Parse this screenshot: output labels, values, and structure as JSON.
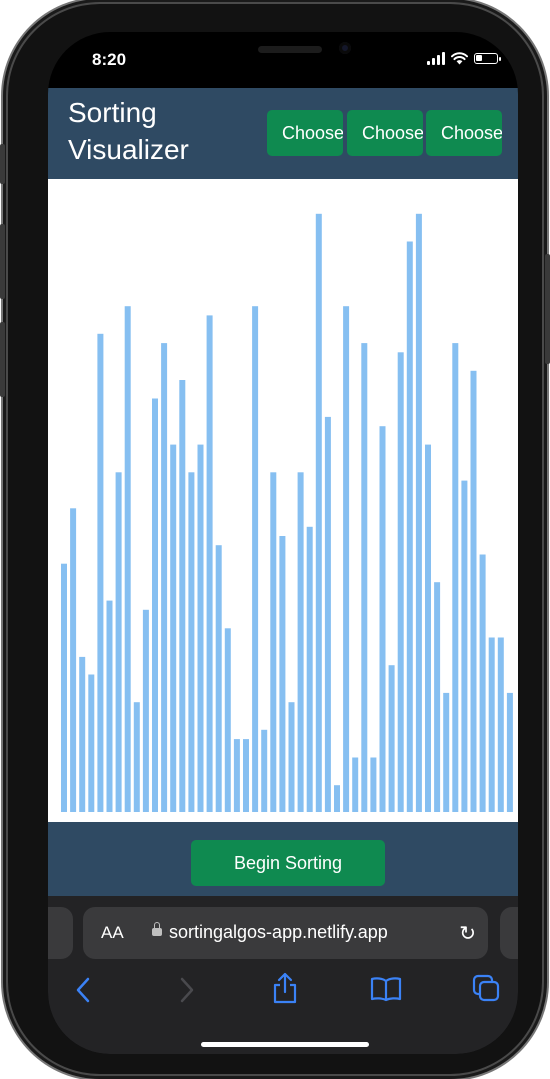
{
  "status_bar": {
    "time": "8:20"
  },
  "app": {
    "title_line1": "Sorting",
    "title_line2": "Visualizer",
    "choose_buttons": [
      "Choose",
      "Choose",
      "Choose"
    ],
    "begin_label": "Begin Sorting"
  },
  "chart_data": {
    "type": "bar",
    "color": "#86bff1",
    "ylim": [
      0,
      650
    ],
    "values": [
      269,
      329,
      168,
      149,
      518,
      229,
      368,
      548,
      119,
      219,
      448,
      508,
      398,
      468,
      368,
      398,
      538,
      289,
      199,
      79,
      79,
      548,
      89,
      368,
      299,
      119,
      368,
      309,
      648,
      428,
      29,
      548,
      59,
      508,
      59,
      418,
      159,
      498,
      618,
      648,
      398,
      249,
      129,
      508,
      359,
      478,
      279,
      189,
      189,
      129
    ]
  },
  "browser": {
    "aa_label": "AA",
    "url": "sortingalgos-app.netlify.app"
  },
  "colors": {
    "header_bg": "#2f4a63",
    "button_bg": "#0f8a50",
    "bar_color": "#86bff1",
    "safari_accent": "#3b82f6"
  }
}
